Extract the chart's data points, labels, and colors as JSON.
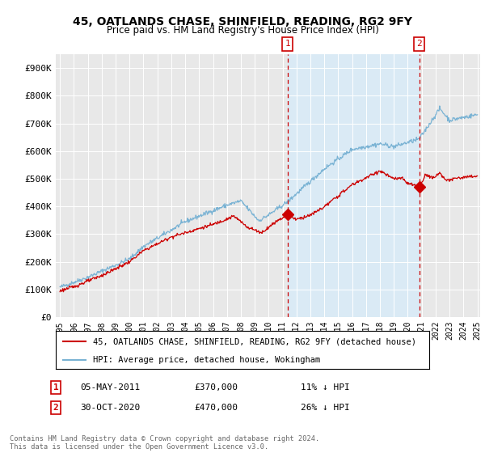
{
  "title": "45, OATLANDS CHASE, SHINFIELD, READING, RG2 9FY",
  "subtitle": "Price paid vs. HM Land Registry's House Price Index (HPI)",
  "ylim": [
    0,
    950000
  ],
  "yticks": [
    0,
    100000,
    200000,
    300000,
    400000,
    500000,
    600000,
    700000,
    800000,
    900000
  ],
  "ytick_labels": [
    "£0",
    "£100K",
    "£200K",
    "£300K",
    "£400K",
    "£500K",
    "£600K",
    "£700K",
    "£800K",
    "£900K"
  ],
  "hpi_color": "#7ab3d4",
  "price_color": "#cc0000",
  "shade_color": "#daeaf5",
  "marker1_x": 2011.35,
  "marker1_y": 370000,
  "marker2_x": 2020.83,
  "marker2_y": 470000,
  "marker1_label": "1",
  "marker2_label": "2",
  "annotation1_date": "05-MAY-2011",
  "annotation1_price": "£370,000",
  "annotation1_hpi": "11% ↓ HPI",
  "annotation2_date": "30-OCT-2020",
  "annotation2_price": "£470,000",
  "annotation2_hpi": "26% ↓ HPI",
  "legend_line1": "45, OATLANDS CHASE, SHINFIELD, READING, RG2 9FY (detached house)",
  "legend_line2": "HPI: Average price, detached house, Wokingham",
  "footnote": "Contains HM Land Registry data © Crown copyright and database right 2024.\nThis data is licensed under the Open Government Licence v3.0.",
  "background_color": "#ffffff",
  "plot_bg_color": "#e8e8e8",
  "grid_color": "#ffffff",
  "xmin": 1995,
  "xmax": 2025
}
